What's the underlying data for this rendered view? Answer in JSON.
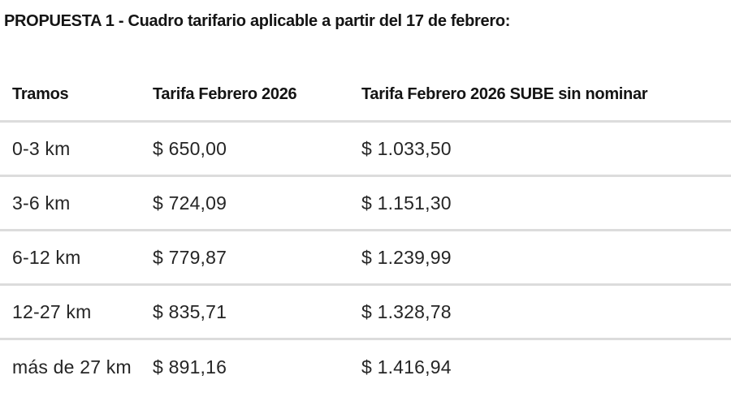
{
  "page": {
    "title": "PROPUESTA 1 - Cuadro tarifario aplicable a partir del 17 de febrero:"
  },
  "table": {
    "columns": [
      "Tramos",
      "Tarifa Febrero 2026",
      "Tarifa Febrero 2026 SUBE sin nominar"
    ],
    "rows": [
      {
        "tramo": "0-3 km",
        "tarifa": "$ 650,00",
        "tarifa_sube_sin_nominar": "$ 1.033,50"
      },
      {
        "tramo": "3-6 km",
        "tarifa": "$ 724,09",
        "tarifa_sube_sin_nominar": "$ 1.151,30"
      },
      {
        "tramo": "6-12 km",
        "tarifa": "$ 779,87",
        "tarifa_sube_sin_nominar": "$ 1.239,99"
      },
      {
        "tramo": "12-27 km",
        "tarifa": "$ 835,71",
        "tarifa_sube_sin_nominar": "$ 1.328,78"
      },
      {
        "tramo": "más de 27 km",
        "tarifa": "$ 891,16",
        "tarifa_sube_sin_nominar": "$ 1.416,94"
      }
    ]
  },
  "colors": {
    "background": "#ffffff",
    "text": "#1a1a1a",
    "divider": "#dcdcdc"
  }
}
